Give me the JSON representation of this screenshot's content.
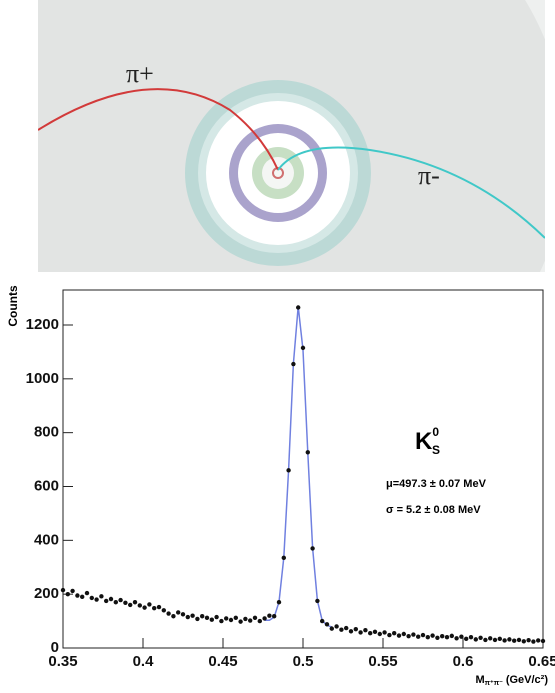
{
  "event_display": {
    "labels": [
      "π+",
      "π-"
    ]
  },
  "chart_data": {
    "type": "scatter",
    "ylabel": "Counts",
    "xlabel": {
      "main": "M",
      "sub": "π⁺π⁻",
      "unit": " (GeV/c²)"
    },
    "annotation": {
      "symbol": "K",
      "sup": "0",
      "sub": "S",
      "lines": [
        "μ=497.3 ± 0.07 MeV",
        "σ = 5.2 ± 0.08 MeV"
      ]
    },
    "xlim": [
      0.35,
      0.65
    ],
    "ylim": [
      0,
      1330
    ],
    "xticks": [
      0.35,
      0.4,
      0.45,
      0.5,
      0.55,
      0.6,
      0.65
    ],
    "yticks": [
      0,
      200,
      400,
      600,
      800,
      1000,
      1200
    ],
    "color": "#111111",
    "x": [
      0.35,
      0.353,
      0.356,
      0.359,
      0.362,
      0.365,
      0.368,
      0.371,
      0.374,
      0.377,
      0.38,
      0.383,
      0.386,
      0.389,
      0.392,
      0.395,
      0.398,
      0.401,
      0.404,
      0.407,
      0.41,
      0.413,
      0.416,
      0.419,
      0.422,
      0.425,
      0.428,
      0.431,
      0.434,
      0.437,
      0.44,
      0.443,
      0.446,
      0.449,
      0.452,
      0.455,
      0.458,
      0.461,
      0.464,
      0.467,
      0.47,
      0.473,
      0.476,
      0.479,
      0.482,
      0.485,
      0.488,
      0.491,
      0.494,
      0.497,
      0.5,
      0.503,
      0.506,
      0.509,
      0.512,
      0.515,
      0.518,
      0.521,
      0.524,
      0.527,
      0.53,
      0.533,
      0.536,
      0.539,
      0.542,
      0.545,
      0.548,
      0.551,
      0.554,
      0.557,
      0.56,
      0.563,
      0.566,
      0.569,
      0.572,
      0.575,
      0.578,
      0.581,
      0.584,
      0.587,
      0.59,
      0.593,
      0.596,
      0.599,
      0.602,
      0.605,
      0.608,
      0.611,
      0.614,
      0.617,
      0.62,
      0.623,
      0.626,
      0.629,
      0.632,
      0.635,
      0.638,
      0.641,
      0.644,
      0.647,
      0.65
    ],
    "values": [
      215,
      200,
      212,
      195,
      190,
      204,
      186,
      180,
      192,
      175,
      182,
      170,
      178,
      168,
      160,
      170,
      158,
      150,
      162,
      148,
      152,
      140,
      128,
      118,
      132,
      125,
      115,
      120,
      108,
      118,
      112,
      105,
      115,
      100,
      110,
      104,
      112,
      98,
      108,
      102,
      112,
      100,
      110,
      120,
      118,
      170,
      335,
      660,
      1055,
      1265,
      1115,
      727,
      370,
      175,
      100,
      88,
      72,
      80,
      68,
      74,
      62,
      70,
      58,
      66,
      55,
      60,
      52,
      58,
      48,
      55,
      46,
      52,
      44,
      50,
      42,
      48,
      40,
      46,
      38,
      44,
      40,
      45,
      36,
      42,
      34,
      40,
      32,
      38,
      30,
      36,
      30,
      34,
      28,
      32,
      27,
      30,
      25,
      29,
      24,
      28,
      26
    ],
    "fit": {
      "color": "#7080e0",
      "x": [
        0.476,
        0.479,
        0.482,
        0.485,
        0.488,
        0.491,
        0.494,
        0.497,
        0.5,
        0.503,
        0.506,
        0.509,
        0.512,
        0.515,
        0.518
      ],
      "values": [
        103,
        103,
        115,
        171,
        336,
        662,
        1057,
        1269,
        1107,
        726,
        372,
        176,
        102,
        84,
        78
      ]
    }
  }
}
